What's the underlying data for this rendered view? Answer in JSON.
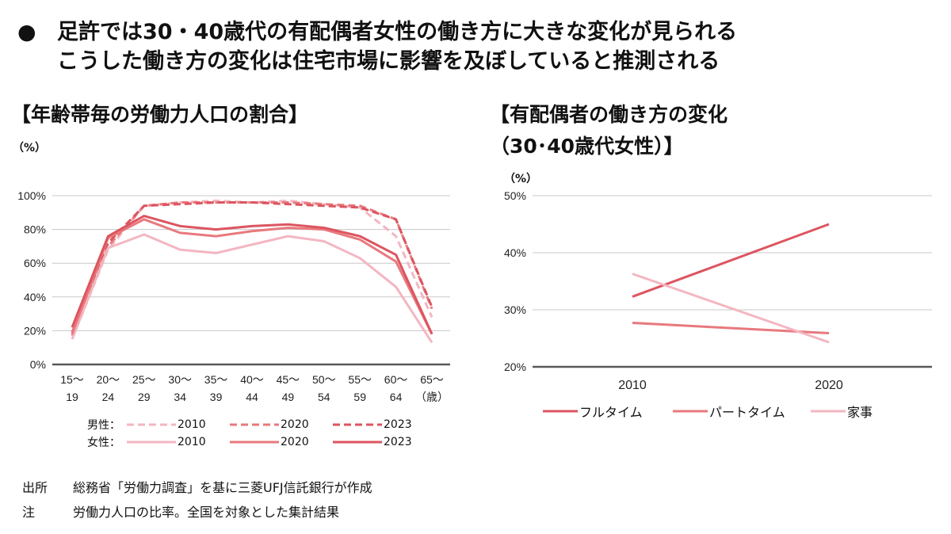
{
  "headline": {
    "bullet": "●",
    "line1": "足許では30・40歳代の有配偶者女性の働き方に大きな変化が見られる",
    "line2": "こうした働き方の変化は住宅市場に影響を及ぼしていると推測される"
  },
  "left": {
    "section_title": "【年齢帯毎の労働力人口の割合】",
    "unit": "（%）",
    "legend": {
      "male_label": "男性：",
      "female_label": "女性：",
      "years": [
        "2010",
        "2020",
        "2023"
      ]
    }
  },
  "right": {
    "section_title_line1": "【有配偶者の働き方の変化",
    "section_title_line2": "（30･40歳代女性）】",
    "unit": "（%）"
  },
  "footer": {
    "source_label": "出所",
    "source_text": "総務省「労働力調査」を基に三菱UFJ信託銀行が作成",
    "note_label": "注",
    "note_text": "労働力人口の比率。全国を対象とした集計結果"
  },
  "colors": {
    "y2010": "#f3b6c1",
    "y2020": "#e8797d",
    "y2023": "#dc5560",
    "grid": "#c8c8c8",
    "axis": "#595959"
  },
  "chart_data": [
    {
      "type": "line",
      "title": "【年齢帯毎の労働力人口の割合】",
      "ylabel": "（%）",
      "ylim": [
        0,
        100
      ],
      "yticks": [
        "0%",
        "20%",
        "40%",
        "60%",
        "80%",
        "100%"
      ],
      "categories": [
        [
          "15～",
          "19"
        ],
        [
          "20～",
          "24"
        ],
        [
          "25～",
          "29"
        ],
        [
          "30～",
          "34"
        ],
        [
          "35～",
          "39"
        ],
        [
          "40～",
          "44"
        ],
        [
          "45～",
          "49"
        ],
        [
          "50～",
          "54"
        ],
        [
          "55～",
          "59"
        ],
        [
          "60～",
          "64"
        ],
        [
          "65～",
          "（歳）"
        ]
      ],
      "grid": true,
      "legend": "bottom",
      "series": [
        {
          "name": "男性：2010",
          "style": "dashed",
          "color": "#f3b6c1",
          "values": [
            15,
            68,
            94,
            96,
            97,
            96,
            97,
            95,
            93,
            76,
            28
          ]
        },
        {
          "name": "男性：2020",
          "style": "dashed",
          "color": "#e8797d",
          "values": [
            17,
            70,
            94,
            96,
            96,
            96,
            96,
            95,
            94,
            86,
            33
          ]
        },
        {
          "name": "男性：2023",
          "style": "dashed",
          "color": "#dc5560",
          "values": [
            19,
            72,
            94,
            95,
            96,
            96,
            95,
            94,
            93,
            86,
            34
          ]
        },
        {
          "name": "女性：2010",
          "style": "solid",
          "color": "#f3b6c1",
          "values": [
            15,
            69,
            77,
            68,
            66,
            71,
            76,
            73,
            63,
            46,
            13
          ]
        },
        {
          "name": "女性：2020",
          "style": "solid",
          "color": "#e8797d",
          "values": [
            18,
            75,
            86,
            78,
            76,
            79,
            81,
            80,
            74,
            61,
            18
          ]
        },
        {
          "name": "女性：2023",
          "style": "solid",
          "color": "#dc5560",
          "values": [
            22,
            76,
            88,
            82,
            80,
            82,
            83,
            81,
            76,
            65,
            18
          ]
        }
      ]
    },
    {
      "type": "line",
      "title": "【有配偶者の働き方の変化（30･40歳代女性）】",
      "ylabel": "（%）",
      "ylim": [
        20,
        50
      ],
      "yticks": [
        "20%",
        "30%",
        "40%",
        "50%"
      ],
      "categories": [
        "2010",
        "2020"
      ],
      "grid": true,
      "legend": "bottom",
      "series": [
        {
          "name": "フルタイム",
          "color": "#dc5560",
          "values": [
            32.3,
            45.0
          ]
        },
        {
          "name": "パートタイム",
          "color": "#e8797d",
          "values": [
            27.7,
            25.9
          ]
        },
        {
          "name": "家事",
          "color": "#f3b6c1",
          "values": [
            36.3,
            24.3
          ]
        }
      ]
    }
  ]
}
